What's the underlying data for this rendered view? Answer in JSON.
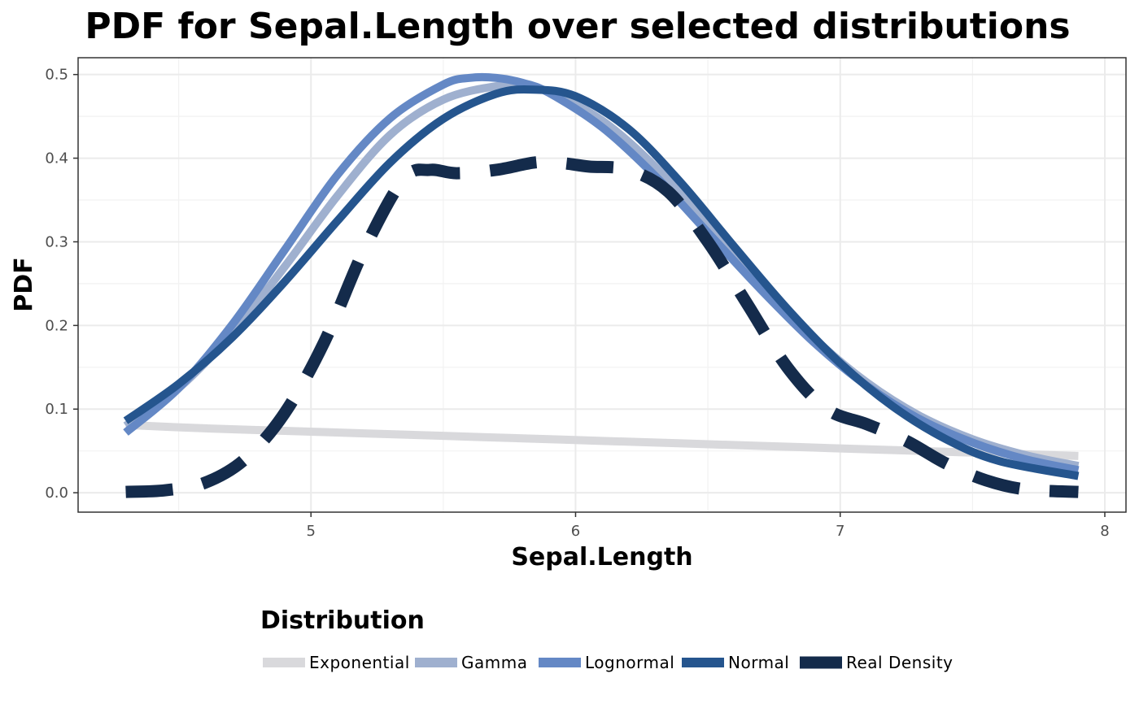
{
  "chart_data": {
    "type": "line",
    "title": "PDF for Sepal.Length over selected distributions",
    "xlabel": "Sepal.Length",
    "ylabel": "PDF",
    "xlim": [
      4.12,
      8.08
    ],
    "ylim": [
      -0.0232,
      0.5201
    ],
    "x_ticks": [
      5,
      6,
      7,
      8
    ],
    "x_tick_labels": [
      "5",
      "6",
      "7",
      "8"
    ],
    "y_ticks": [
      0.0,
      0.1,
      0.2,
      0.3,
      0.4,
      0.5
    ],
    "y_tick_labels": [
      "0.0",
      "0.1",
      "0.2",
      "0.3",
      "0.4",
      "0.5"
    ],
    "grid": true,
    "legend": {
      "title": "Distribution",
      "position": "bottom",
      "entries": [
        "Exponential",
        "Gamma",
        "Lognormal",
        "Normal",
        "Real Density"
      ]
    },
    "series": [
      {
        "name": "Exponential",
        "color": "#d9d9dc",
        "dash": "solid",
        "x": [
          4.3,
          4.6,
          4.9,
          5.2,
          5.5,
          5.8,
          6.1,
          6.4,
          6.7,
          7.0,
          7.3,
          7.6,
          7.9
        ],
        "y": [
          0.081,
          0.077,
          0.074,
          0.071,
          0.068,
          0.065,
          0.062,
          0.059,
          0.056,
          0.053,
          0.05,
          0.047,
          0.044
        ]
      },
      {
        "name": "Gamma",
        "color": "#9fb0cf",
        "dash": "solid",
        "x": [
          4.3,
          4.5,
          4.7,
          4.9,
          5.1,
          5.3,
          5.5,
          5.7,
          5.8,
          5.9,
          6.1,
          6.3,
          6.5,
          6.7,
          6.9,
          7.1,
          7.3,
          7.5,
          7.7,
          7.9
        ],
        "y": [
          0.08,
          0.125,
          0.19,
          0.27,
          0.355,
          0.428,
          0.47,
          0.486,
          0.485,
          0.479,
          0.445,
          0.39,
          0.32,
          0.25,
          0.185,
          0.132,
          0.092,
          0.064,
          0.045,
          0.032
        ]
      },
      {
        "name": "Lognormal",
        "color": "#6488c5",
        "dash": "solid",
        "x": [
          4.3,
          4.5,
          4.7,
          4.9,
          5.1,
          5.3,
          5.5,
          5.6,
          5.7,
          5.8,
          5.9,
          6.1,
          6.3,
          6.5,
          6.7,
          6.9,
          7.1,
          7.3,
          7.5,
          7.7,
          7.9
        ],
        "y": [
          0.072,
          0.125,
          0.2,
          0.29,
          0.38,
          0.448,
          0.488,
          0.496,
          0.496,
          0.49,
          0.478,
          0.437,
          0.379,
          0.311,
          0.243,
          0.18,
          0.128,
          0.088,
          0.06,
          0.04,
          0.027
        ]
      },
      {
        "name": "Normal",
        "color": "#25558e",
        "dash": "solid",
        "x": [
          4.3,
          4.5,
          4.7,
          4.9,
          5.1,
          5.3,
          5.5,
          5.7,
          5.84,
          6.0,
          6.2,
          6.4,
          6.6,
          6.8,
          7.0,
          7.2,
          7.4,
          7.6,
          7.9
        ],
        "y": [
          0.086,
          0.13,
          0.185,
          0.252,
          0.325,
          0.395,
          0.447,
          0.477,
          0.482,
          0.474,
          0.435,
          0.37,
          0.294,
          0.22,
          0.155,
          0.103,
          0.064,
          0.038,
          0.02
        ]
      },
      {
        "name": "Real Density",
        "color": "#142b4b",
        "dash": "dashed",
        "x": [
          4.3,
          4.45,
          4.6,
          4.75,
          4.9,
          5.05,
          5.2,
          5.35,
          5.45,
          5.55,
          5.7,
          5.85,
          5.95,
          6.05,
          6.2,
          6.35,
          6.5,
          6.65,
          6.8,
          6.95,
          7.1,
          7.25,
          7.4,
          7.55,
          7.7,
          7.9
        ],
        "y": [
          0.001,
          0.003,
          0.012,
          0.04,
          0.095,
          0.18,
          0.29,
          0.375,
          0.386,
          0.382,
          0.386,
          0.395,
          0.394,
          0.39,
          0.386,
          0.36,
          0.3,
          0.225,
          0.15,
          0.1,
          0.082,
          0.062,
          0.035,
          0.015,
          0.004,
          0.001
        ]
      }
    ]
  }
}
